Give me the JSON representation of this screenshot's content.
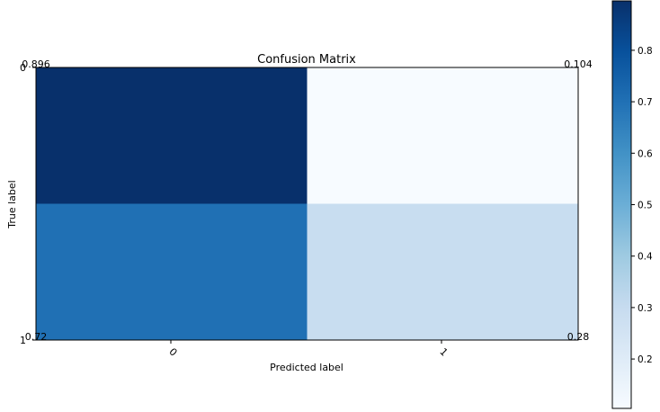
{
  "chart_data": {
    "type": "heatmap",
    "title": "Confusion Matrix",
    "xlabel": "Predicted label",
    "ylabel": "True label",
    "x_categories": [
      "0",
      "1"
    ],
    "y_categories": [
      "0",
      "1"
    ],
    "values": [
      [
        0.896,
        0.104
      ],
      [
        0.72,
        0.28
      ]
    ],
    "cell_labels": [
      [
        "0.896",
        "0.104"
      ],
      [
        "0.72",
        "0.28"
      ]
    ],
    "cell_colors": [
      [
        "#08306b",
        "#f7fbff"
      ],
      [
        "#2070b4",
        "#c8ddf0"
      ]
    ],
    "colormap": "Blues",
    "colorbar": {
      "vmin": 0.104,
      "vmax": 0.896,
      "ticks": [
        "0.2",
        "0.3",
        "0.4",
        "0.5",
        "0.6",
        "0.7",
        "0.8"
      ],
      "tick_values": [
        0.2,
        0.3,
        0.4,
        0.5,
        0.6,
        0.7,
        0.8
      ]
    },
    "grid": false
  }
}
